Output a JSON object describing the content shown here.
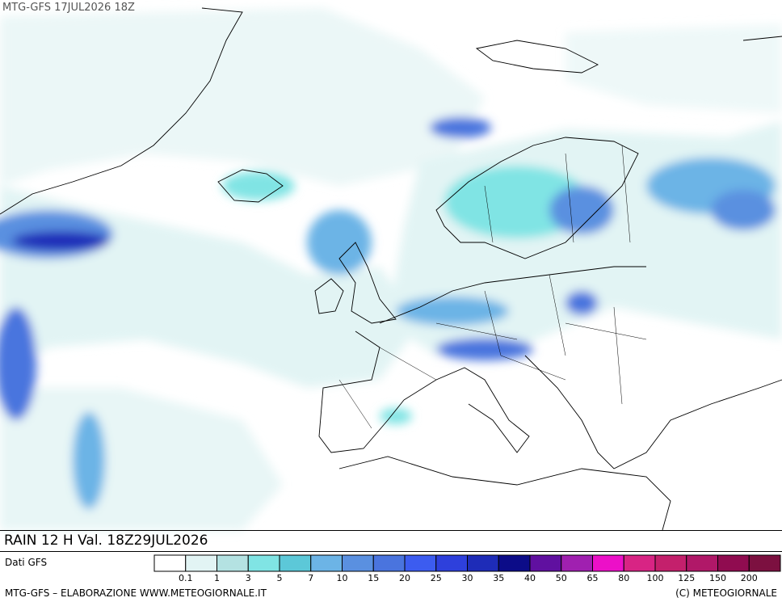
{
  "header": {
    "title": "MTG-GFS 17JUL2026 18Z"
  },
  "footer": {
    "field": "RAIN 12 H Val. 18Z29JUL2026",
    "source": "Dati GFS",
    "credit_left": "MTG-GFS – ELABORAZIONE WWW.METEOGIORNALE.IT",
    "credit_right": "(C) METEOGIORNALE"
  },
  "legend": {
    "colors": [
      "#ffffff",
      "#e2f4f4",
      "#b4e2e2",
      "#80e4e4",
      "#5cc8d8",
      "#6cb4e6",
      "#5a90e0",
      "#4a74de",
      "#3c5cf0",
      "#2e40dc",
      "#1e2cb8",
      "#0c0c88",
      "#6010a0",
      "#a020b0",
      "#ec10c8",
      "#d82484",
      "#c4206c",
      "#b01868",
      "#900c50",
      "#7c1040"
    ],
    "labels": [
      "0.1",
      "1",
      "3",
      "5",
      "7",
      "10",
      "15",
      "20",
      "25",
      "30",
      "35",
      "40",
      "50",
      "65",
      "80",
      "100",
      "125",
      "150",
      "200"
    ]
  }
}
